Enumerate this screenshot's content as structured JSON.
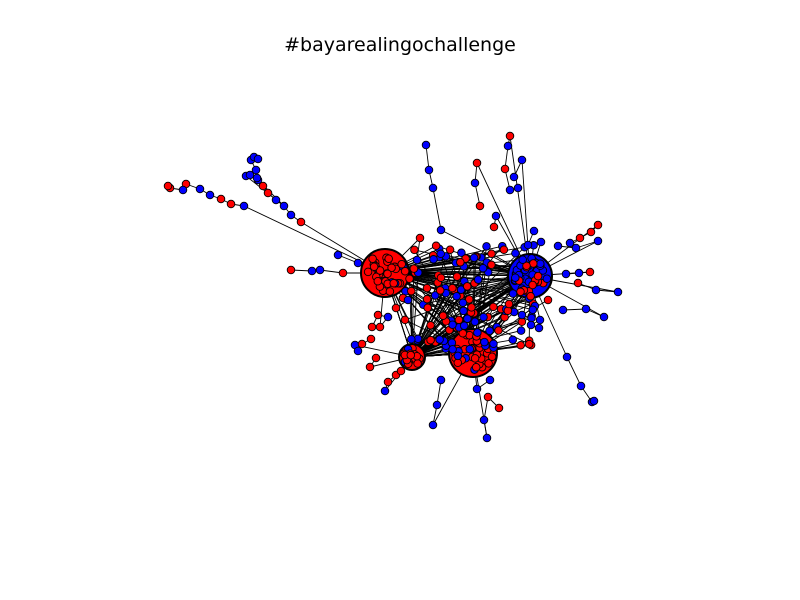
{
  "title": "#bayarealingochallenge",
  "colors": {
    "node_red": "#ff0000",
    "node_blue": "#0000ff",
    "edge": "#000000",
    "node_outline": "#000000",
    "background": "#ffffff"
  },
  "graph": {
    "type": "network",
    "directed": false,
    "node_groups": [
      "red",
      "blue"
    ]
  }
}
